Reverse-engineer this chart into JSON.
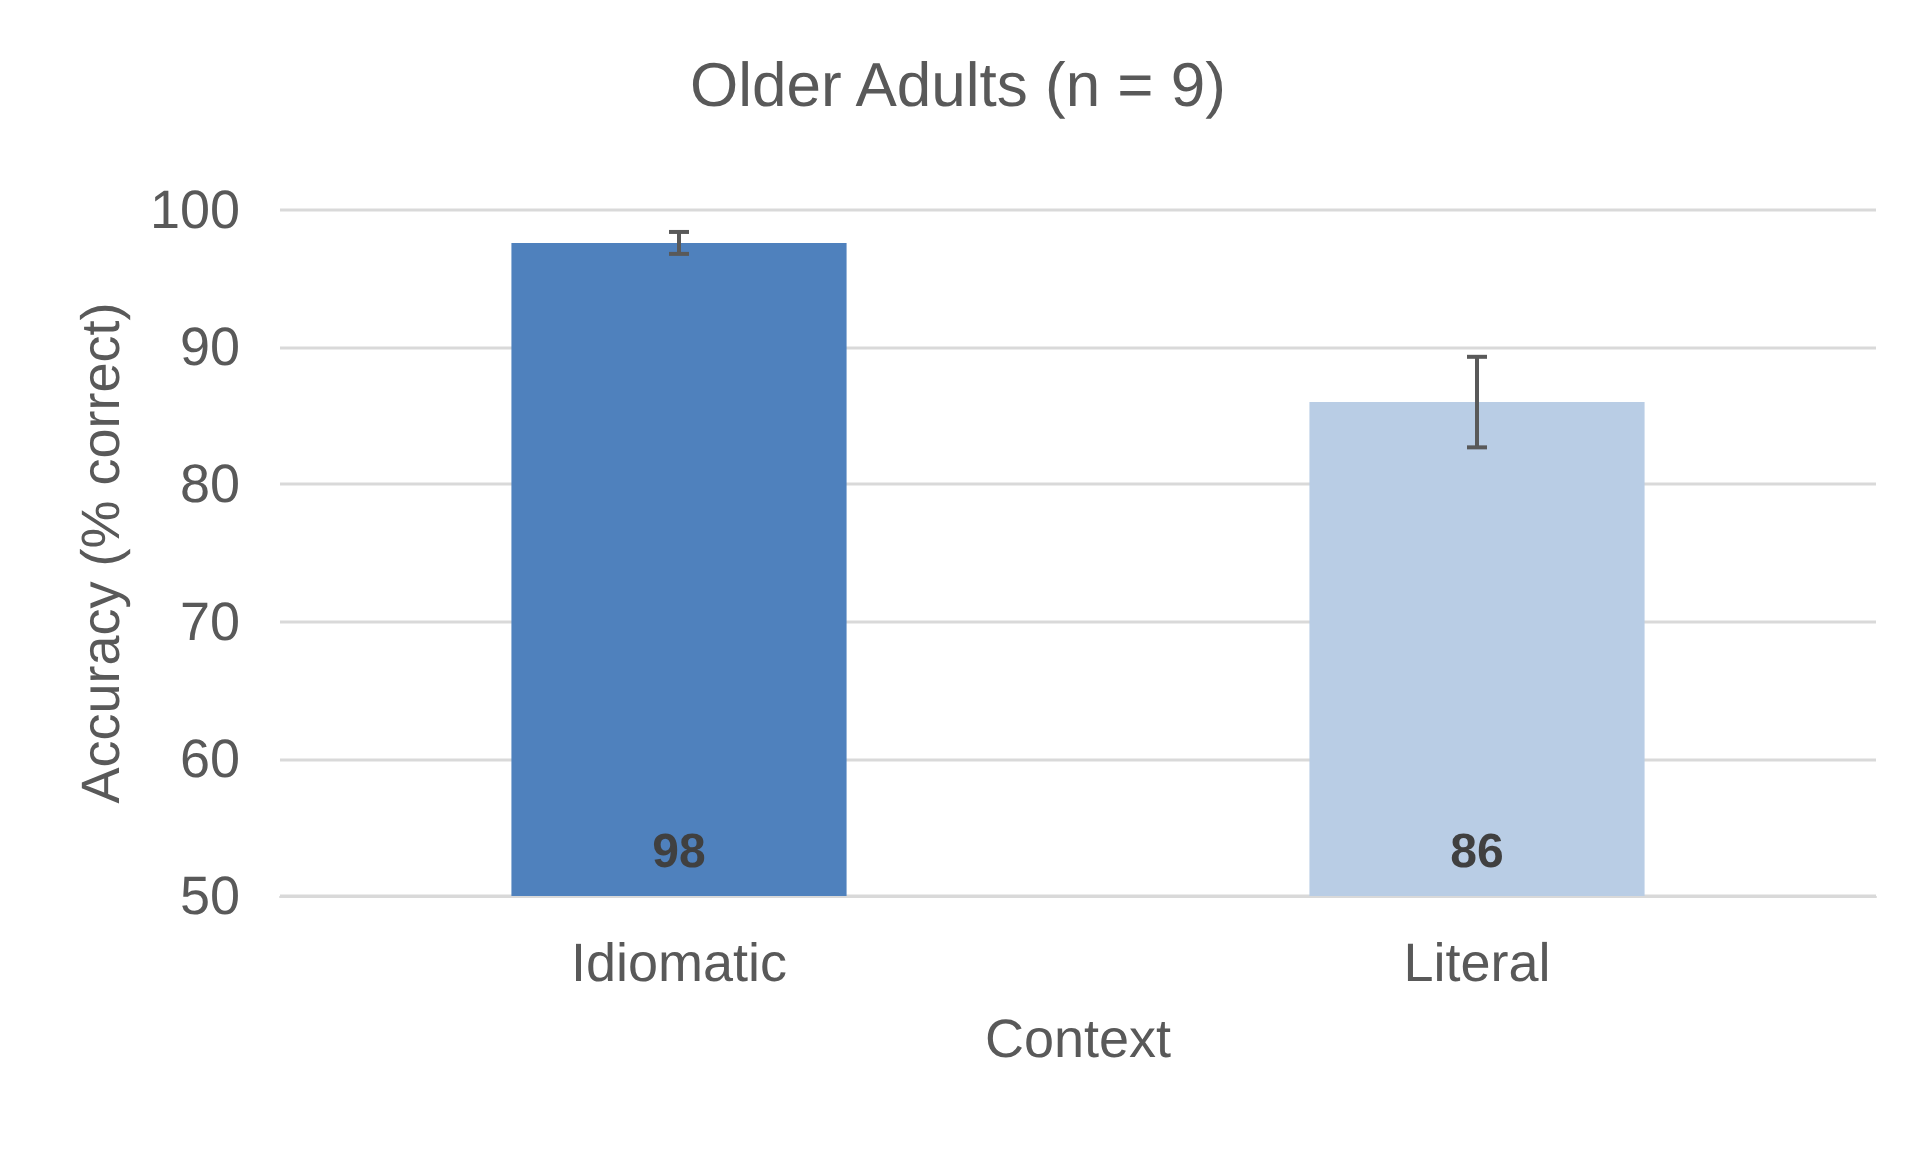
{
  "chart_data": {
    "type": "bar",
    "title": "Older Adults (n = 9)",
    "xlabel": "Context",
    "ylabel": "Accuracy (% correct)",
    "categories": [
      "Idiomatic",
      "Literal"
    ],
    "values": [
      97.6,
      86.0
    ],
    "colors": [
      "#4f81bd",
      "#b9cde5"
    ],
    "value_labels": [
      "98",
      "86"
    ],
    "errors": [
      0.8,
      3.3
    ],
    "ylim": [
      50,
      100
    ],
    "yticks": [
      50,
      60,
      70,
      80,
      90,
      100
    ],
    "grid": "y"
  }
}
